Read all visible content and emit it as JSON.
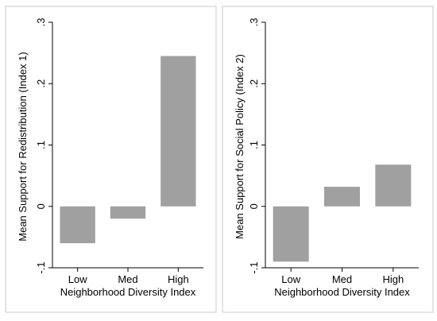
{
  "colors": {
    "bar": "#a0a0a0",
    "axis": "#000000",
    "frame": "#c8c8c8",
    "background": "#ffffff"
  },
  "chart_data": [
    {
      "type": "bar",
      "categories": [
        "Low",
        "Med",
        "High"
      ],
      "values": [
        -0.06,
        -0.02,
        0.245
      ],
      "title": "",
      "xlabel": "Neighborhood Diversity Index",
      "ylabel": "Mean Support for Redistribution (Index 1)",
      "ylim": [
        -0.1,
        0.3
      ],
      "yticks": [
        -0.1,
        0,
        0.1,
        0.2,
        0.3
      ],
      "ytick_labels": [
        "-.1",
        "0",
        ".1",
        ".2",
        ".3"
      ],
      "grid": false,
      "legend": "none"
    },
    {
      "type": "bar",
      "categories": [
        "Low",
        "Med",
        "High"
      ],
      "values": [
        -0.09,
        0.032,
        0.068
      ],
      "title": "",
      "xlabel": "Neighborhood Diversity Index",
      "ylabel": "Mean Support for Social Policy (Index 2)",
      "ylim": [
        -0.1,
        0.3
      ],
      "yticks": [
        -0.1,
        0,
        0.1,
        0.2,
        0.3
      ],
      "ytick_labels": [
        "-.1",
        "0",
        ".1",
        ".2",
        ".3"
      ],
      "grid": false,
      "legend": "none"
    }
  ]
}
